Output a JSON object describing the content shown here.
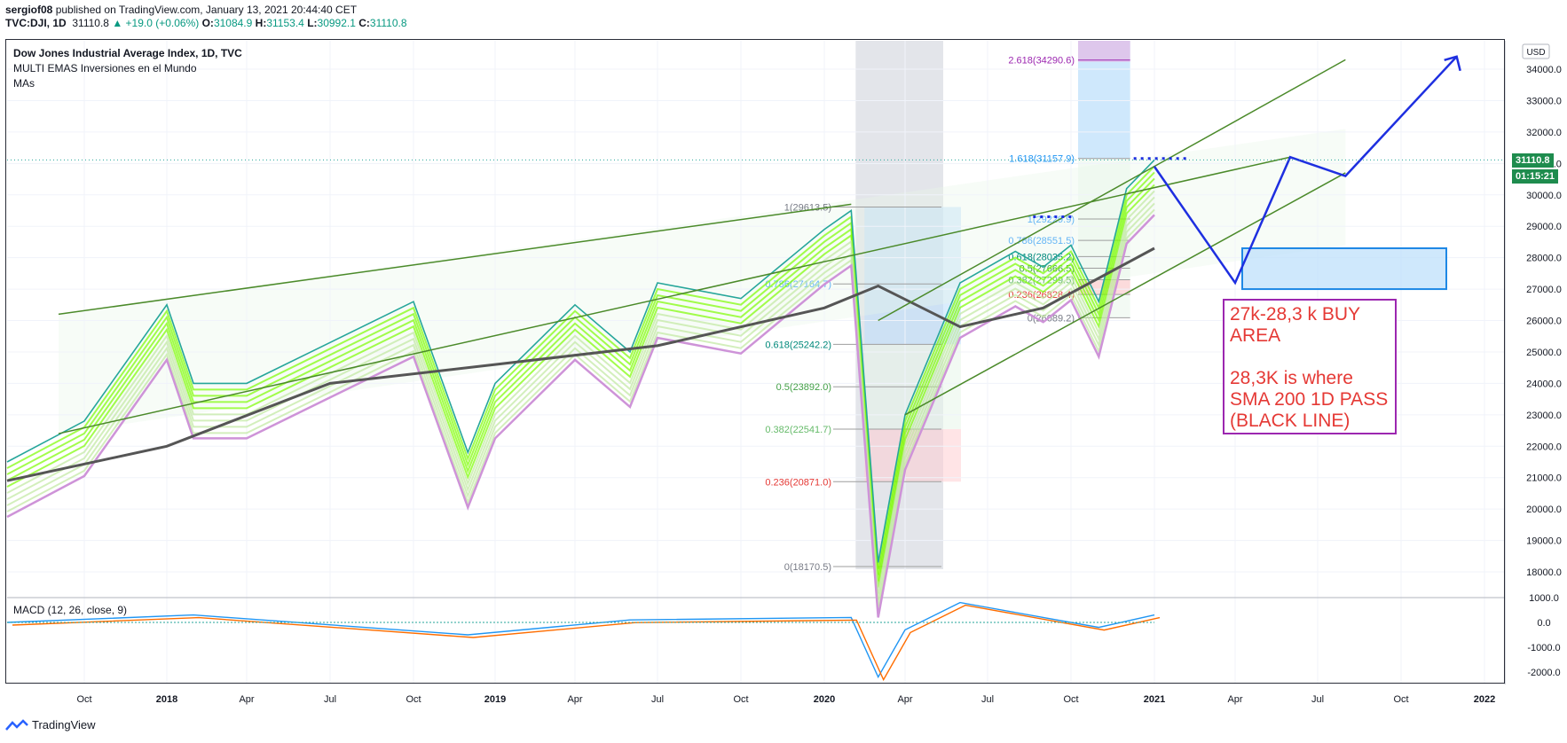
{
  "header": {
    "author": "sergiof08",
    "published": "published on TradingView.com, January 13, 2021 20:44:40 CET",
    "symbol": "TVC:DJI, 1D",
    "last": "31110.8",
    "change": "▲ +19.0 (+0.06%)",
    "o_label": "O:",
    "o": "31084.9",
    "h_label": "H:",
    "h": "31153.4",
    "l_label": "L:",
    "l": "30992.1",
    "c_label": "C:",
    "c": "31110.8"
  },
  "legend": {
    "title": "Dow Jones Industrial Average Index, 1D, TVC",
    "line2": "MULTI EMAS Inversiones en el Mundo",
    "line3": "MAs"
  },
  "macd_label": "MACD (12, 26, close, 9)",
  "footer": {
    "brand": "TradingView"
  },
  "currency": "USD",
  "price_badge": "31110.8",
  "countdown_badge": "01:15:21",
  "note_text": "27k-28,3 k BUY\nAREA\n\n28,3K is where\nSMA 200 1D PASS\n(BLACK LINE)",
  "colors": {
    "up_candle": "#26a69a",
    "down_candle": "#ef5350",
    "sma200": "#555555",
    "channel": "#4b8a2a",
    "arrows": "#1e2fe0",
    "note_border": "#9c27b0",
    "note_text": "#e53935",
    "macd_line": "#2196f3",
    "signal_line": "#ff6d00"
  },
  "chart_data": {
    "type": "line",
    "title": "Dow Jones Industrial Average Index, 1D, TVC",
    "x_ticks": [
      "Oct",
      "2018",
      "Apr",
      "Jul",
      "Oct",
      "2019",
      "Apr",
      "Jul",
      "Oct",
      "2020",
      "Apr",
      "Jul",
      "Oct",
      "2021",
      "Apr",
      "Jul",
      "Oct",
      "2022"
    ],
    "y_ticks": [
      18000,
      19000,
      20000,
      21000,
      22000,
      23000,
      24000,
      25000,
      26000,
      27000,
      28000,
      29000,
      30000,
      31000,
      32000,
      33000,
      34000
    ],
    "ylim": [
      17600,
      34800
    ],
    "price_series": {
      "name": "DJI",
      "x": [
        "2017-07",
        "2017-10",
        "2018-01",
        "2018-02",
        "2018-04",
        "2018-07",
        "2018-10",
        "2018-12",
        "2019-01",
        "2019-04",
        "2019-06",
        "2019-07",
        "2019-10",
        "2020-01",
        "2020-02",
        "2020-03",
        "2020-04",
        "2020-06",
        "2020-08",
        "2020-09",
        "2020-10",
        "2020-11",
        "2020-12",
        "2021-01"
      ],
      "values": [
        21500,
        22800,
        26500,
        24000,
        24000,
        25300,
        26600,
        21800,
        24000,
        26500,
        25000,
        27200,
        26700,
        28900,
        29500,
        18300,
        23000,
        27200,
        28200,
        27700,
        28400,
        26600,
        30200,
        31110
      ]
    },
    "sma200": {
      "x": [
        "2017-07",
        "2018-01",
        "2018-07",
        "2019-01",
        "2019-07",
        "2020-01",
        "2020-03",
        "2020-06",
        "2020-09",
        "2021-01"
      ],
      "values": [
        20900,
        22000,
        24000,
        24600,
        25200,
        26400,
        27100,
        25800,
        26400,
        28300
      ]
    },
    "fib_levels_left": [
      {
        "label": "1(29613.5)",
        "value": 29613.5
      },
      {
        "label": "0.786(27164.7)",
        "value": 27164.7
      },
      {
        "label": "0.618(25242.2)",
        "value": 25242.2
      },
      {
        "label": "0.5(23892.0)",
        "value": 23892.0
      },
      {
        "label": "0.382(22541.7)",
        "value": 22541.7
      },
      {
        "label": "0.236(20871.0)",
        "value": 20871.0
      },
      {
        "label": "0(18170.5)",
        "value": 18170.5
      }
    ],
    "fib_levels_right": [
      {
        "label": "2.618(34290.6)",
        "value": 34290.6
      },
      {
        "label": "1.618(31157.9)",
        "value": 31157.9
      },
      {
        "label": "1(29229.9)",
        "value": 29229.9
      },
      {
        "label": "0.786(28551.5)",
        "value": 28551.5
      },
      {
        "label": "0.618(28035.2)",
        "value": 28035.2
      },
      {
        "label": "0.5(27666.5)",
        "value": 27666.5
      },
      {
        "label": "0.382(27299.5)",
        "value": 27299.5
      },
      {
        "label": "0.236(26828.4)",
        "value": 26828.4
      },
      {
        "label": "0(26089.2)",
        "value": 26089.2
      }
    ],
    "buy_zone": [
      27000,
      28300
    ],
    "macd": {
      "name": "MACD (12, 26, close, 9)",
      "y_ticks": [
        1000,
        0,
        -1000,
        -2000
      ],
      "x": [
        "2017-07",
        "2018-02",
        "2018-12",
        "2019-06",
        "2020-02",
        "2020-03",
        "2020-04",
        "2020-06",
        "2020-09",
        "2020-11",
        "2021-01"
      ],
      "values": [
        0,
        300,
        -500,
        100,
        200,
        -2200,
        -300,
        800,
        200,
        -200,
        300
      ]
    },
    "projection_path": {
      "x": [
        "2021-01",
        "2021-04",
        "2021-06",
        "2021-08",
        "2021-12"
      ],
      "values": [
        30900,
        27200,
        31200,
        30600,
        34400
      ]
    }
  }
}
